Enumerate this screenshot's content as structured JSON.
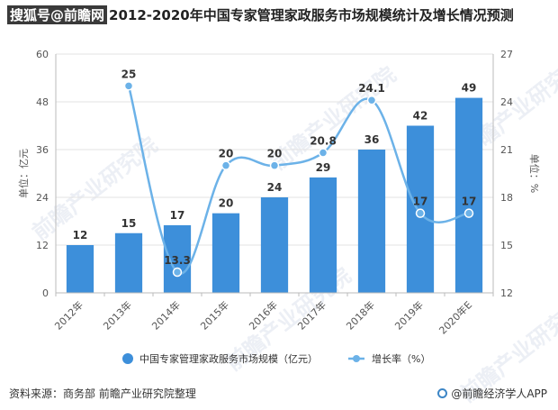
{
  "title_prefix": "搜狐号@前瞻网",
  "title_rest": "2012-2020年中国专家管理家政服务市场规模统计及增长情况预测",
  "watermark_text": "前瞻产业研究院",
  "chart_data": {
    "type": "bar",
    "categories": [
      "2012年",
      "2013年",
      "2014年",
      "2015年",
      "2016年",
      "2017年",
      "2018年",
      "2019年",
      "2020年E"
    ],
    "series": [
      {
        "name": "中国专家管理家政服务市场规模（亿元）",
        "type": "bar",
        "axis": "left",
        "values": [
          12,
          15,
          17,
          20,
          24,
          29,
          36,
          42,
          49
        ],
        "labels": [
          "12",
          "15",
          "17",
          "20",
          "24",
          "29",
          "36",
          "42",
          "49"
        ],
        "color": "#3d8fda"
      },
      {
        "name": "增长率（%）",
        "type": "line",
        "axis": "right",
        "values": [
          null,
          25,
          13.3,
          20,
          20,
          20.8,
          24.1,
          17,
          17
        ],
        "labels": [
          "",
          "25",
          "13.3",
          "20",
          "20",
          "20.8",
          "24.1",
          "17",
          "17"
        ],
        "color": "#6cb2e8"
      }
    ],
    "ylabel": "单位：亿元",
    "ylabel_right": "单位：%",
    "ylim": [
      0,
      60
    ],
    "yticks": [
      "0",
      "12",
      "24",
      "36",
      "48",
      "60"
    ],
    "ylim_right": [
      12,
      27
    ],
    "yticks_right": [
      "12",
      "15",
      "18",
      "21",
      "24",
      "27"
    ],
    "grid": true,
    "legend_position": "bottom"
  },
  "footer": {
    "source": "资料来源：商务部 前瞻产业研究院整理",
    "brand": "@前瞻经济学人APP"
  }
}
